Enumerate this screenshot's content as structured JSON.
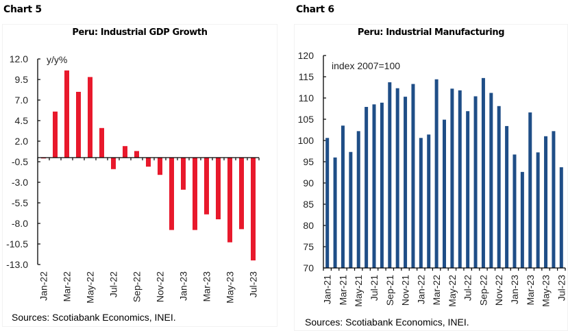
{
  "chart_data": [
    {
      "id": "chart5",
      "chart_number_label": "Chart 5",
      "type": "bar",
      "title": "Peru: Industrial GDP Growth",
      "ylabel": "y/y%",
      "xlabel": "",
      "ylim": [
        -13.0,
        12.0
      ],
      "yticks": [
        12.0,
        9.5,
        7.0,
        4.5,
        2.0,
        -0.5,
        -3.0,
        -5.5,
        -8.0,
        -10.5,
        -13.0
      ],
      "ytick_labels": [
        "12.0",
        "9.5",
        "7.0",
        "4.5",
        "2.0",
        "-0.5",
        "-3.0",
        "-5.5",
        "-8.0",
        "-10.5",
        "-13.0"
      ],
      "categories": [
        "Jan-22",
        "Feb-22",
        "Mar-22",
        "Apr-22",
        "May-22",
        "Jun-22",
        "Jul-22",
        "Aug-22",
        "Sep-22",
        "Oct-22",
        "Nov-22",
        "Dec-22",
        "Jan-23",
        "Feb-23",
        "Mar-23",
        "Apr-23",
        "May-23",
        "Jun-23",
        "Jul-23"
      ],
      "xtick_labels": [
        "Jan-22",
        "Mar-22",
        "May-22",
        "Jul-22",
        "Sep-22",
        "Nov-22",
        "Jan-23",
        "Mar-23",
        "May-23",
        "Jul-23"
      ],
      "values": [
        -0.1,
        5.6,
        10.6,
        8.0,
        9.8,
        3.6,
        -1.4,
        1.4,
        0.8,
        -1.1,
        -2.1,
        -8.8,
        -3.9,
        -8.8,
        -6.9,
        -7.5,
        -10.3,
        -8.7,
        -12.5
      ],
      "bar_color": "#e8192c",
      "grid": false,
      "legend": "none",
      "source": "Sources: Scotiabank Economics, INEI."
    },
    {
      "id": "chart6",
      "chart_number_label": "Chart 6",
      "type": "bar",
      "title": "Peru: Industrial Manufacturing",
      "ylabel": "index 2007=100",
      "xlabel": "",
      "ylim": [
        70,
        120
      ],
      "yticks": [
        120,
        115,
        110,
        105,
        100,
        95,
        90,
        85,
        80,
        75,
        70
      ],
      "ytick_labels": [
        "120",
        "115",
        "110",
        "105",
        "100",
        "95",
        "90",
        "85",
        "80",
        "75",
        "70"
      ],
      "categories": [
        "Jan-21",
        "Feb-21",
        "Mar-21",
        "Apr-21",
        "May-21",
        "Jun-21",
        "Jul-21",
        "Aug-21",
        "Sep-21",
        "Oct-21",
        "Nov-21",
        "Dec-21",
        "Jan-22",
        "Feb-22",
        "Mar-22",
        "Apr-22",
        "May-22",
        "Jun-22",
        "Jul-22",
        "Aug-22",
        "Sep-22",
        "Oct-22",
        "Nov-22",
        "Dec-22",
        "Jan-23",
        "Feb-23",
        "Mar-23",
        "Apr-23",
        "May-23",
        "Jun-23",
        "Jul-23"
      ],
      "xtick_labels": [
        "Jan-21",
        "Mar-21",
        "May-21",
        "Jul-21",
        "Sep-21",
        "Nov-21",
        "Jan-22",
        "Mar-22",
        "May-22",
        "Jul-22",
        "Sep-22",
        "Nov-22",
        "Jan-23",
        "Mar-23",
        "May-23",
        "Jul-23"
      ],
      "values": [
        100.6,
        96.0,
        103.5,
        97.3,
        102.2,
        107.9,
        108.5,
        108.9,
        113.7,
        112.3,
        110.3,
        113.3,
        100.6,
        101.4,
        114.4,
        104.9,
        112.2,
        111.8,
        106.9,
        110.4,
        114.7,
        111.2,
        108.1,
        103.4,
        96.7,
        92.6,
        106.6,
        97.2,
        101.0,
        102.2,
        93.7
      ],
      "bar_color": "#1f4e87",
      "grid": false,
      "legend": "none",
      "source": "Sources: Scotiabank Economics, INEI."
    }
  ]
}
